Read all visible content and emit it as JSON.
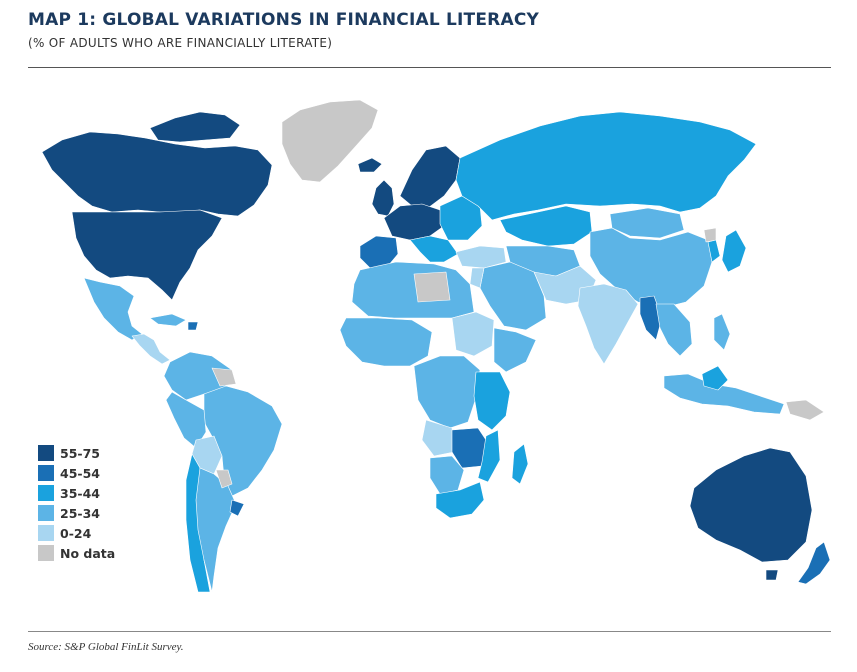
{
  "header": {
    "title": "MAP 1: GLOBAL VARIATIONS IN FINANCIAL LITERACY",
    "subtitle": "(% OF ADULTS WHO ARE FINANCIALLY LITERATE)"
  },
  "legend": {
    "items": [
      {
        "label": "55-75",
        "color": "#134a80"
      },
      {
        "label": "45-54",
        "color": "#1a6fb5"
      },
      {
        "label": "35-44",
        "color": "#1aa2de"
      },
      {
        "label": "25-34",
        "color": "#5cb4e6"
      },
      {
        "label": "0-24",
        "color": "#a8d6f1"
      },
      {
        "label": "No data",
        "color": "#c8c8c8"
      }
    ]
  },
  "footer": {
    "source": "Source: S&P Global FinLit Survey."
  },
  "colors": {
    "c55": "#134a80",
    "c45": "#1a6fb5",
    "c35": "#1aa2de",
    "c25": "#5cb4e6",
    "c0": "#a8d6f1",
    "nodata": "#c8c8c8"
  }
}
